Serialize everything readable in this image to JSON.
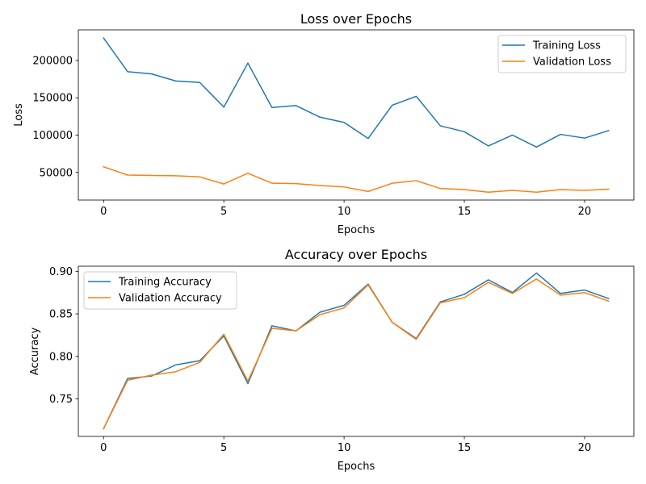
{
  "chart_data": [
    {
      "type": "line",
      "title": "Loss over Epochs",
      "xlabel": "Epochs",
      "ylabel": "Loss",
      "xlim": [
        -1.05,
        22.05
      ],
      "ylim": [
        13000,
        241000
      ],
      "xticks": [
        0,
        5,
        10,
        15,
        20
      ],
      "yticks": [
        50000,
        100000,
        150000,
        200000
      ],
      "legend_position": "top-right",
      "x": [
        0,
        1,
        2,
        3,
        4,
        5,
        6,
        7,
        8,
        9,
        10,
        11,
        12,
        13,
        14,
        15,
        16,
        17,
        18,
        19,
        20,
        21
      ],
      "series": [
        {
          "name": "Training Loss",
          "color": "#1f77b4",
          "values": [
            230000,
            185000,
            182000,
            172500,
            170500,
            137500,
            196500,
            137000,
            139500,
            124000,
            117000,
            95500,
            140000,
            152000,
            112500,
            104500,
            85500,
            100000,
            84000,
            101000,
            96000,
            106000
          ]
        },
        {
          "name": "Validation Loss",
          "color": "#ff7f0e",
          "values": [
            57500,
            46500,
            46000,
            45500,
            44000,
            34500,
            49000,
            35500,
            35000,
            32500,
            30500,
            24500,
            35500,
            39000,
            28500,
            27000,
            23500,
            26000,
            23500,
            27000,
            26000,
            27500
          ]
        }
      ]
    },
    {
      "type": "line",
      "title": "Accuracy over Epochs",
      "xlabel": "Epochs",
      "ylabel": "Accuracy",
      "xlim": [
        -1.05,
        22.05
      ],
      "ylim": [
        0.706,
        0.906
      ],
      "xticks": [
        0,
        5,
        10,
        15,
        20
      ],
      "yticks": [
        0.75,
        0.8,
        0.85,
        0.9
      ],
      "legend_position": "top-left",
      "x": [
        0,
        1,
        2,
        3,
        4,
        5,
        6,
        7,
        8,
        9,
        10,
        11,
        12,
        13,
        14,
        15,
        16,
        17,
        18,
        19,
        20,
        21
      ],
      "series": [
        {
          "name": "Training Accuracy",
          "color": "#1f77b4",
          "values": [
            0.715,
            0.774,
            0.777,
            0.79,
            0.795,
            0.824,
            0.768,
            0.836,
            0.83,
            0.852,
            0.86,
            0.885,
            0.84,
            0.821,
            0.864,
            0.873,
            0.89,
            0.875,
            0.898,
            0.874,
            0.878,
            0.868
          ]
        },
        {
          "name": "Validation Accuracy",
          "color": "#ff7f0e",
          "values": [
            0.715,
            0.772,
            0.778,
            0.782,
            0.793,
            0.826,
            0.771,
            0.833,
            0.83,
            0.849,
            0.857,
            0.884,
            0.84,
            0.82,
            0.863,
            0.869,
            0.887,
            0.874,
            0.891,
            0.872,
            0.875,
            0.865
          ]
        }
      ]
    }
  ]
}
